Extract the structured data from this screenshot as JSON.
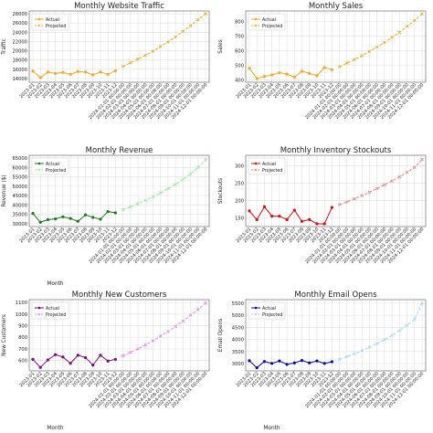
{
  "chart_data": [
    {
      "type": "line",
      "title": "Monthly Website Traffic",
      "xlabel": "",
      "ylabel": "Traffic",
      "ylim": [
        13200,
        28600
      ],
      "yticks": [
        14000,
        16000,
        18000,
        20000,
        22000,
        24000,
        26000,
        28000
      ],
      "x_actual": [
        "2023-01",
        "2023-02",
        "2023-03",
        "2023-04",
        "2023-05",
        "2023-06",
        "2023-07",
        "2023-08",
        "2023-09",
        "2023-10",
        "2023-11",
        "2023-12"
      ],
      "x_projected": [
        "2024-01-01 00:00:00",
        "2024-02-01 00:00:00",
        "2024-03-01 00:00:00",
        "2024-04-01 00:00:00",
        "2024-05-01 00:00:00",
        "2024-06-01 00:00:00",
        "2024-07-01 00:00:00",
        "2024-08-01 00:00:00",
        "2024-09-01 00:00:00",
        "2024-10-01 00:00:00",
        "2024-11-01 00:00:00",
        "2024-12-01 00:00:00"
      ],
      "series": [
        {
          "name": "Actual",
          "color": "#f5a623",
          "style": "solid",
          "marker": "circle",
          "segment": "actual",
          "values": [
            15600,
            14200,
            15400,
            15100,
            15300,
            14900,
            15500,
            15400,
            14800,
            15400,
            14900,
            15700
          ]
        },
        {
          "name": "Projected",
          "color": "#f5a623",
          "style": "dashed",
          "marker": "x",
          "segment": "projected",
          "values": [
            16600,
            17400,
            18200,
            19000,
            19900,
            20900,
            21900,
            23000,
            24200,
            25400,
            26700,
            28000
          ]
        }
      ],
      "legend": "top-left",
      "grid": true
    },
    {
      "type": "line",
      "title": "Monthly Sales",
      "xlabel": "",
      "ylabel": "Sales",
      "ylim": [
        385,
        870
      ],
      "yticks": [
        400,
        500,
        600,
        700,
        800
      ],
      "x_actual": [
        "2023-01",
        "2023-02",
        "2023-03",
        "2023-04",
        "2023-05",
        "2023-06",
        "2023-07",
        "2023-08",
        "2023-09",
        "2023-10",
        "2023-11",
        "2023-12"
      ],
      "x_projected": [
        "2024-01-01 00:00:00",
        "2024-02-01 00:00:00",
        "2024-03-01 00:00:00",
        "2024-04-01 00:00:00",
        "2024-05-01 00:00:00",
        "2024-06-01 00:00:00",
        "2024-07-01 00:00:00",
        "2024-08-01 00:00:00",
        "2024-09-01 00:00:00",
        "2024-10-01 00:00:00",
        "2024-11-01 00:00:00",
        "2024-12-01 00:00:00"
      ],
      "series": [
        {
          "name": "Actual",
          "color": "#f5a623",
          "style": "solid",
          "marker": "circle",
          "segment": "actual",
          "values": [
            480,
            410,
            425,
            435,
            450,
            440,
            420,
            460,
            445,
            430,
            485,
            470
          ]
        },
        {
          "name": "Projected",
          "color": "#f5a623",
          "style": "dashed",
          "marker": "x",
          "segment": "projected",
          "values": [
            490,
            515,
            540,
            565,
            595,
            625,
            655,
            690,
            725,
            765,
            805,
            850
          ]
        }
      ],
      "legend": "top-left",
      "grid": true
    },
    {
      "type": "line",
      "title": "Monthly Revenue",
      "xlabel": "Month",
      "ylabel": "Revenue ($)",
      "ylim": [
        28500,
        66500
      ],
      "yticks": [
        30000,
        35000,
        40000,
        45000,
        50000,
        55000,
        60000,
        65000
      ],
      "x_actual": [
        "2023-01",
        "2023-02",
        "2023-03",
        "2023-04",
        "2023-05",
        "2023-06",
        "2023-07",
        "2023-08",
        "2023-09",
        "2023-10",
        "2023-11",
        "2023-12"
      ],
      "x_projected": [
        "2024-01-01 00:00:00",
        "2024-02-01 00:00:00",
        "2024-03-01 00:00:00",
        "2024-04-01 00:00:00",
        "2024-05-01 00:00:00",
        "2024-06-01 00:00:00",
        "2024-07-01 00:00:00",
        "2024-08-01 00:00:00",
        "2024-09-01 00:00:00",
        "2024-10-01 00:00:00",
        "2024-11-01 00:00:00",
        "2024-12-01 00:00:00"
      ],
      "series": [
        {
          "name": "Actual",
          "color": "#1a7a1a",
          "style": "solid",
          "marker": "circle",
          "segment": "actual",
          "values": [
            35500,
            30800,
            32200,
            32600,
            33700,
            32800,
            31300,
            34700,
            33400,
            32400,
            36500,
            35800
          ]
        },
        {
          "name": "Projected",
          "color": "#90ee90",
          "style": "dashed",
          "marker": "x",
          "segment": "projected",
          "values": [
            37500,
            39000,
            40700,
            42500,
            44400,
            46500,
            48700,
            51100,
            53700,
            56500,
            60000,
            64000
          ]
        }
      ],
      "legend": "top-left",
      "grid": true
    },
    {
      "type": "line",
      "title": "Monthly Inventory Stockouts",
      "xlabel": "",
      "ylabel": "Stockouts",
      "ylim": [
        125,
        330
      ],
      "yticks": [
        150,
        200,
        250,
        300
      ],
      "x_actual": [
        "2023-01",
        "2023-02",
        "2023-03",
        "2023-04",
        "2023-05",
        "2023-06",
        "2023-07",
        "2023-08",
        "2023-09",
        "2023-10",
        "2023-11",
        "2023-12"
      ],
      "x_projected": [
        "2024-01-01 00:00:00",
        "2024-02-01 00:00:00",
        "2024-03-01 00:00:00",
        "2024-04-01 00:00:00",
        "2024-05-01 00:00:00",
        "2024-06-01 00:00:00",
        "2024-07-01 00:00:00",
        "2024-08-01 00:00:00",
        "2024-09-01 00:00:00",
        "2024-10-01 00:00:00",
        "2024-11-01 00:00:00",
        "2024-12-01 00:00:00"
      ],
      "series": [
        {
          "name": "Actual",
          "color": "#cc1111",
          "style": "solid",
          "marker": "circle",
          "segment": "actual",
          "values": [
            170,
            145,
            182,
            155,
            155,
            145,
            172,
            140,
            145,
            133,
            133,
            180
          ]
        },
        {
          "name": "Projected",
          "color": "#f08080",
          "style": "dashed",
          "marker": "x",
          "segment": "projected",
          "values": [
            188,
            196,
            205,
            214,
            224,
            234,
            245,
            256,
            268,
            281,
            295,
            318
          ]
        }
      ],
      "legend": "top-left",
      "grid": true
    },
    {
      "type": "line",
      "title": "Monthly New Customers",
      "xlabel": "Month",
      "ylabel": "New Customers",
      "ylim": [
        510,
        1125
      ],
      "yticks": [
        600,
        700,
        800,
        900,
        1000,
        1100
      ],
      "x_actual": [
        "2023-01",
        "2023-02",
        "2023-03",
        "2023-04",
        "2023-05",
        "2023-06",
        "2023-07",
        "2023-08",
        "2023-09",
        "2023-10",
        "2023-11",
        "2023-12"
      ],
      "x_projected": [
        "2024-01-01 00:00:00",
        "2024-02-01 00:00:00",
        "2024-03-01 00:00:00",
        "2024-04-01 00:00:00",
        "2024-05-01 00:00:00",
        "2024-06-01 00:00:00",
        "2024-07-01 00:00:00",
        "2024-08-01 00:00:00",
        "2024-09-01 00:00:00",
        "2024-10-01 00:00:00",
        "2024-11-01 00:00:00",
        "2024-12-01 00:00:00"
      ],
      "series": [
        {
          "name": "Actual",
          "color": "#7a0a7a",
          "style": "solid",
          "marker": "circle",
          "segment": "actual",
          "values": [
            610,
            540,
            605,
            650,
            630,
            575,
            645,
            625,
            560,
            645,
            595,
            610
          ]
        },
        {
          "name": "Projected",
          "color": "#ee82ee",
          "style": "dashed",
          "marker": "x",
          "segment": "projected",
          "values": [
            640,
            670,
            700,
            735,
            770,
            810,
            850,
            895,
            940,
            990,
            1040,
            1095
          ]
        }
      ],
      "legend": "top-left",
      "grid": true
    },
    {
      "type": "line",
      "title": "Monthly Email Opens",
      "xlabel": "Month",
      "ylabel": "Email Opens",
      "ylim": [
        2700,
        5650
      ],
      "yticks": [
        3000,
        3500,
        4000,
        4500,
        5000,
        5500
      ],
      "x_actual": [
        "2023-01",
        "2023-02",
        "2023-03",
        "2023-04",
        "2023-05",
        "2023-06",
        "2023-07",
        "2023-08",
        "2023-09",
        "2023-10",
        "2023-11",
        "2023-12"
      ],
      "x_projected": [
        "2024-01-01 00:00:00",
        "2024-02-01 00:00:00",
        "2024-03-01 00:00:00",
        "2024-04-01 00:00:00",
        "2024-05-01 00:00:00",
        "2024-06-01 00:00:00",
        "2024-07-01 00:00:00",
        "2024-08-01 00:00:00",
        "2024-09-01 00:00:00",
        "2024-10-01 00:00:00",
        "2024-11-01 00:00:00",
        "2024-12-01 00:00:00"
      ],
      "series": [
        {
          "name": "Actual",
          "color": "#0a0aa0",
          "style": "solid",
          "marker": "circle",
          "segment": "actual",
          "values": [
            3120,
            2830,
            3090,
            3010,
            3110,
            2970,
            3030,
            3130,
            3030,
            3110,
            3010,
            3080
          ]
        },
        {
          "name": "Projected",
          "color": "#9fd8f0",
          "style": "dashed",
          "marker": "x",
          "segment": "projected",
          "values": [
            3180,
            3290,
            3410,
            3540,
            3680,
            3830,
            3990,
            4170,
            4370,
            4590,
            4830,
            5500
          ]
        }
      ],
      "legend": "top-left",
      "grid": true
    }
  ]
}
